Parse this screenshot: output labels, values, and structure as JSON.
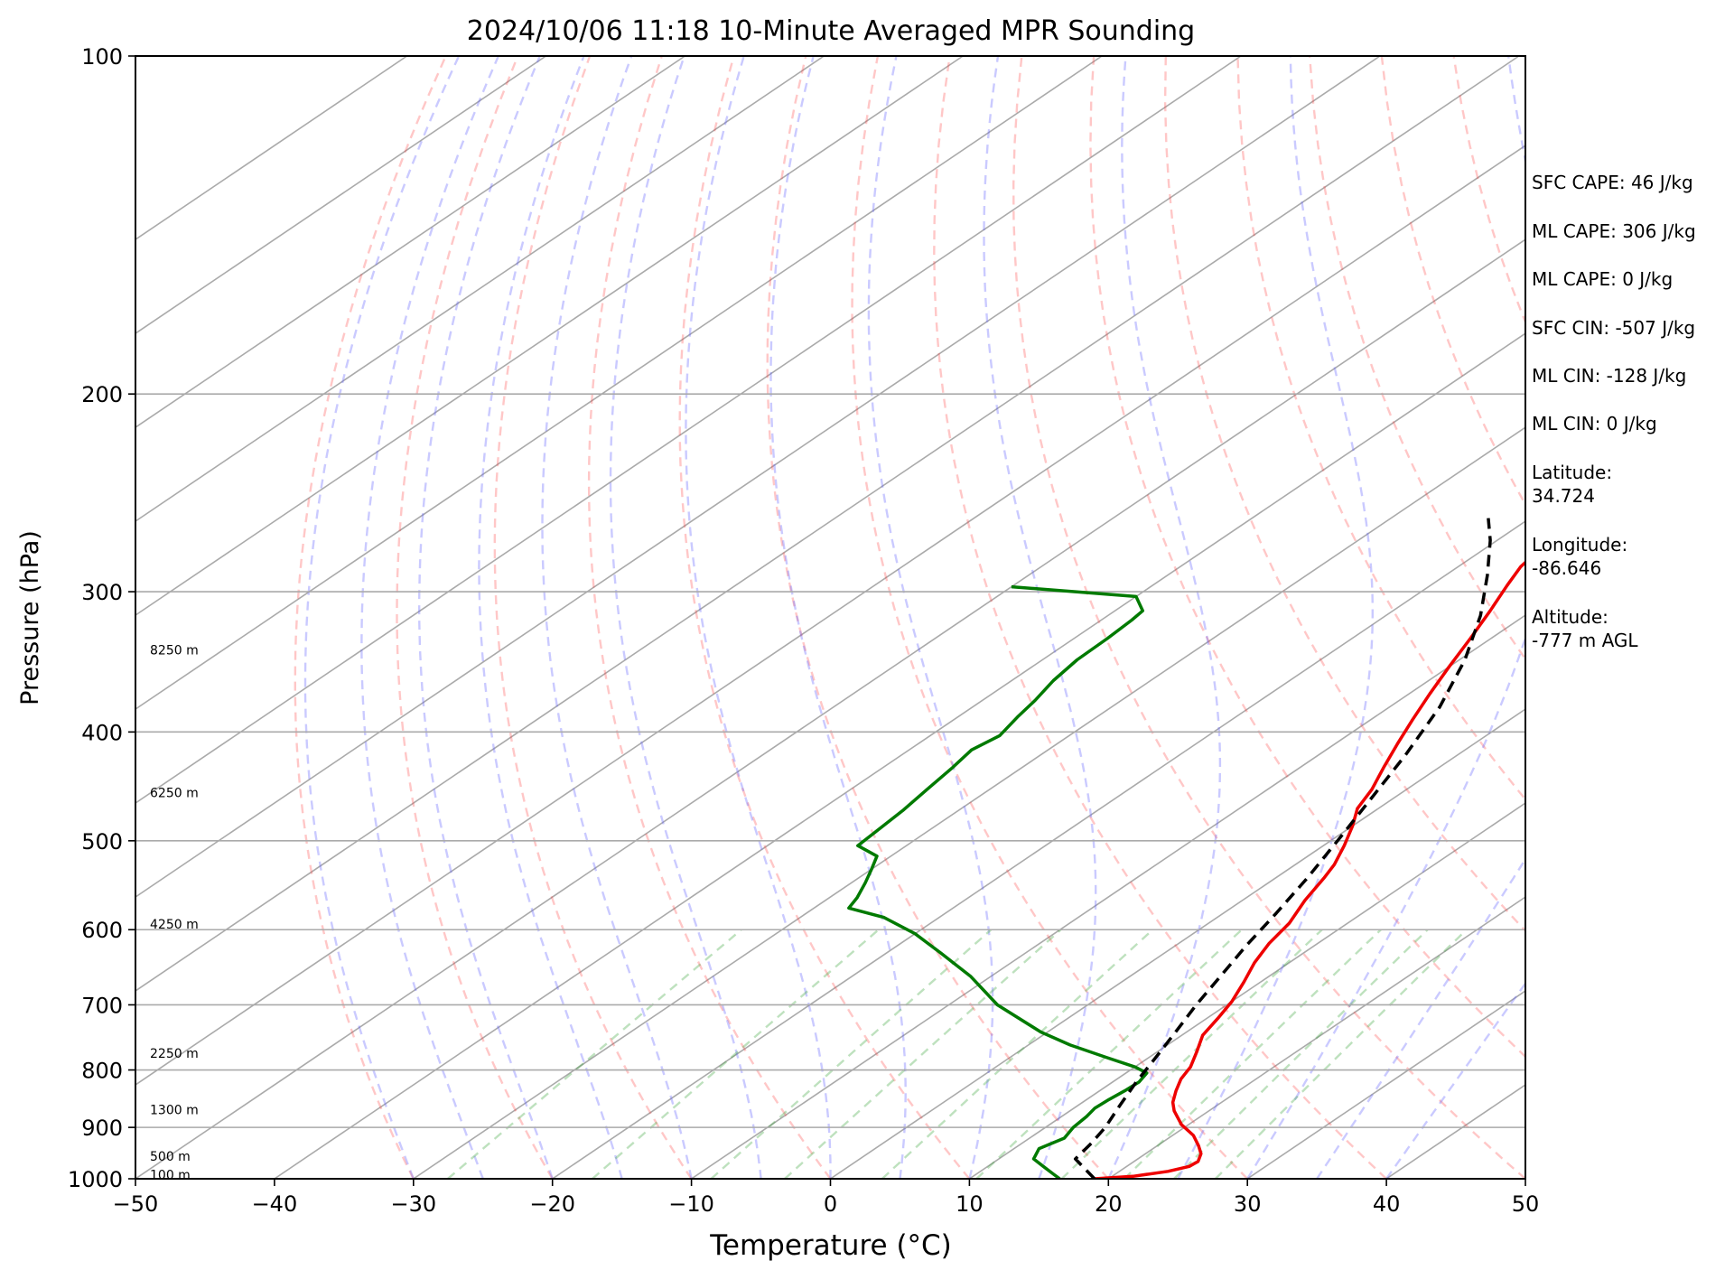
{
  "chart_data": {
    "type": "line",
    "title": "2024/10/06 11:18 10-Minute Averaged MPR Sounding",
    "xlabel": "Temperature (°C)",
    "ylabel": "Pressure (hPa)",
    "xlim": [
      -50,
      50
    ],
    "ylim": [
      1000,
      100
    ],
    "y_scale": "log",
    "x_ticks": [
      "−50",
      "−40",
      "−30",
      "−20",
      "−10",
      "0",
      "10",
      "20",
      "30",
      "40",
      "50"
    ],
    "y_ticks": [
      "100",
      "200",
      "300",
      "400",
      "500",
      "600",
      "700",
      "800",
      "900",
      "1000"
    ],
    "height_labels": [
      {
        "p": 992,
        "label": "100 m"
      },
      {
        "p": 955,
        "label": "500 m"
      },
      {
        "p": 868,
        "label": "1300 m"
      },
      {
        "p": 773,
        "label": "2250 m"
      },
      {
        "p": 593,
        "label": "4250 m"
      },
      {
        "p": 453,
        "label": "6250 m"
      },
      {
        "p": 338,
        "label": "8250 m"
      }
    ],
    "series": [
      {
        "color": "#ee0000",
        "dashed": false,
        "points": [
          [
            1000,
            19.0
          ],
          [
            995,
            21.5
          ],
          [
            985,
            23.5
          ],
          [
            975,
            24.5
          ],
          [
            965,
            24.6
          ],
          [
            950,
            24.0
          ],
          [
            935,
            23.0
          ],
          [
            915,
            21.5
          ],
          [
            895,
            19.5
          ],
          [
            870,
            17.5
          ],
          [
            855,
            16.5
          ],
          [
            835,
            15.5
          ],
          [
            815,
            14.6
          ],
          [
            795,
            14.0
          ],
          [
            770,
            12.8
          ],
          [
            745,
            11.5
          ],
          [
            720,
            10.8
          ],
          [
            695,
            10.0
          ],
          [
            668,
            8.8
          ],
          [
            642,
            7.5
          ],
          [
            617,
            6.5
          ],
          [
            592,
            5.8
          ],
          [
            565,
            4.5
          ],
          [
            540,
            3.5
          ],
          [
            525,
            2.8
          ],
          [
            505,
            1.5
          ],
          [
            485,
            0.0
          ],
          [
            468,
            -1.5
          ],
          [
            450,
            -2.5
          ],
          [
            430,
            -4.0
          ],
          [
            410,
            -5.5
          ],
          [
            390,
            -7.0
          ],
          [
            370,
            -8.5
          ],
          [
            350,
            -10.0
          ],
          [
            330,
            -11.5
          ],
          [
            312,
            -13.0
          ],
          [
            296,
            -14.5
          ],
          [
            285,
            -15.5
          ],
          [
            275,
            -16.0
          ],
          [
            267,
            -16.5
          ],
          [
            260,
            -17.0
          ]
        ]
      },
      {
        "color": "#007a00",
        "dashed": false,
        "points": [
          [
            1000,
            16.5
          ],
          [
            990,
            15.5
          ],
          [
            975,
            14.0
          ],
          [
            960,
            12.5
          ],
          [
            940,
            11.8
          ],
          [
            920,
            12.5
          ],
          [
            900,
            12.0
          ],
          [
            880,
            11.8
          ],
          [
            865,
            11.5
          ],
          [
            850,
            11.6
          ],
          [
            835,
            11.8
          ],
          [
            820,
            11.9
          ],
          [
            805,
            11.5
          ],
          [
            795,
            10.0
          ],
          [
            780,
            7.0
          ],
          [
            760,
            3.0
          ],
          [
            740,
            -0.5
          ],
          [
            700,
            -6.5
          ],
          [
            660,
            -11.5
          ],
          [
            630,
            -16.0
          ],
          [
            605,
            -20.0
          ],
          [
            585,
            -24.0
          ],
          [
            574,
            -27.5
          ],
          [
            562,
            -28.0
          ],
          [
            545,
            -29.0
          ],
          [
            530,
            -30.0
          ],
          [
            516,
            -31.0
          ],
          [
            505,
            -33.5
          ],
          [
            490,
            -33.7
          ],
          [
            470,
            -34.0
          ],
          [
            450,
            -34.5
          ],
          [
            430,
            -35.0
          ],
          [
            415,
            -35.5
          ],
          [
            403,
            -35.0
          ],
          [
            388,
            -35.7
          ],
          [
            375,
            -36.2
          ],
          [
            360,
            -37.0
          ],
          [
            345,
            -37.5
          ],
          [
            330,
            -37.6
          ],
          [
            318,
            -37.8
          ],
          [
            312,
            -38.0
          ],
          [
            303,
            -40.0
          ],
          [
            297,
            -50.0
          ]
        ]
      },
      {
        "color": "#000000",
        "dashed": true,
        "points": [
          [
            1000,
            19.0
          ],
          [
            960,
            15.5
          ],
          [
            930,
            15.0
          ],
          [
            900,
            14.3
          ],
          [
            860,
            13.0
          ],
          [
            820,
            11.7
          ],
          [
            780,
            10.5
          ],
          [
            740,
            9.2
          ],
          [
            700,
            7.8
          ],
          [
            660,
            6.5
          ],
          [
            620,
            5.1
          ],
          [
            580,
            3.8
          ],
          [
            540,
            2.3
          ],
          [
            500,
            0.5
          ],
          [
            460,
            -1.5
          ],
          [
            420,
            -3.7
          ],
          [
            380,
            -6.4
          ],
          [
            345,
            -9.6
          ],
          [
            315,
            -13.2
          ],
          [
            290,
            -17.0
          ],
          [
            270,
            -20.5
          ],
          [
            258,
            -23.0
          ]
        ]
      }
    ]
  },
  "info_panel": {
    "sfc_cape": "SFC CAPE: 46 J/kg",
    "ml_cape_1": "ML CAPE: 306 J/kg",
    "ml_cape_2": "ML CAPE: 0 J/kg",
    "sfc_cin": "SFC CIN: -507 J/kg",
    "ml_cin_1": "ML CIN: -128 J/kg",
    "ml_cin_2": "ML CIN: 0 J/kg",
    "latitude": "Latitude:\n34.724",
    "longitude": "Longitude:\n-86.646",
    "altitude": "Altitude:\n-777 m AGL"
  }
}
